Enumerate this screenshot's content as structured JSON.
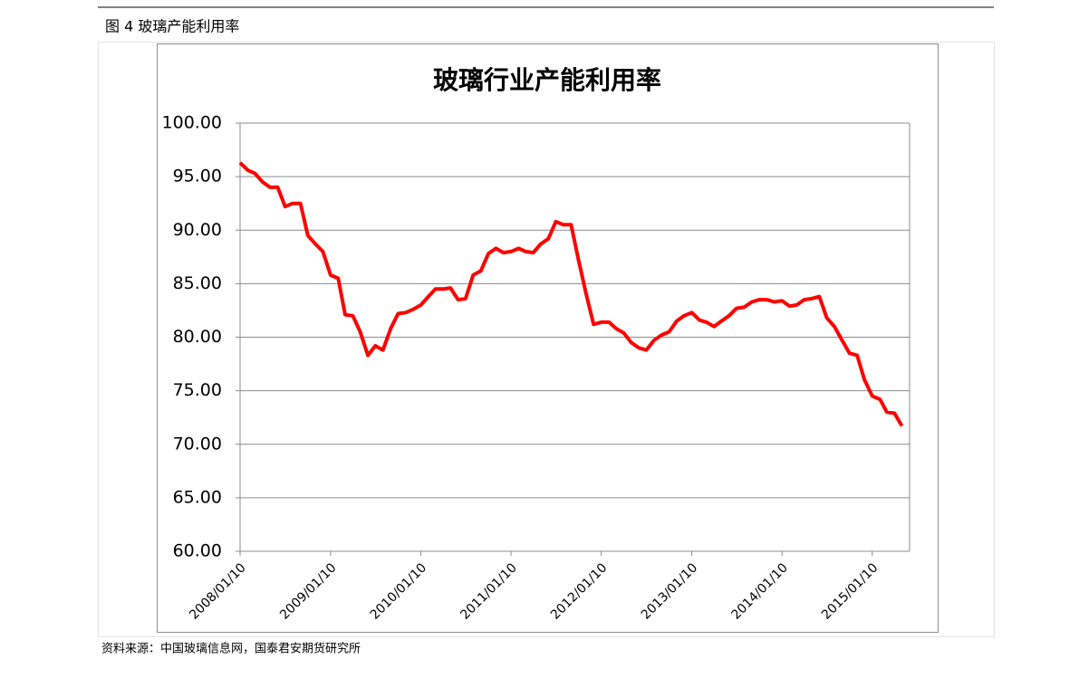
{
  "caption": "图 4  玻璃产能利用率",
  "source": "资料来源：中国玻璃信息网，国泰君安期货研究所",
  "chart_data": {
    "type": "line",
    "title": "玻璃行业产能利用率",
    "x": [
      "2008/01/10",
      "2008/02/10",
      "2008/03/10",
      "2008/04/10",
      "2008/05/10",
      "2008/06/10",
      "2008/07/10",
      "2008/08/10",
      "2008/09/10",
      "2008/10/10",
      "2008/11/10",
      "2008/12/10",
      "2009/01/10",
      "2009/02/10",
      "2009/03/10",
      "2009/04/10",
      "2009/05/10",
      "2009/06/10",
      "2009/07/10",
      "2009/08/10",
      "2009/09/10",
      "2009/10/10",
      "2009/11/10",
      "2009/12/10",
      "2010/01/10",
      "2010/02/10",
      "2010/03/10",
      "2010/04/10",
      "2010/05/10",
      "2010/06/10",
      "2010/07/10",
      "2010/08/10",
      "2010/09/10",
      "2010/10/10",
      "2010/11/10",
      "2010/12/10",
      "2011/01/10",
      "2011/02/10",
      "2011/03/10",
      "2011/04/10",
      "2011/05/10",
      "2011/06/10",
      "2011/07/10",
      "2011/08/10",
      "2011/09/10",
      "2011/10/10",
      "2011/11/10",
      "2011/12/10",
      "2012/01/10",
      "2012/02/10",
      "2012/03/10",
      "2012/04/10",
      "2012/05/10",
      "2012/06/10",
      "2012/07/10",
      "2012/08/10",
      "2012/09/10",
      "2012/10/10",
      "2012/11/10",
      "2012/12/10",
      "2013/01/10",
      "2013/02/10",
      "2013/03/10",
      "2013/04/10",
      "2013/05/10",
      "2013/06/10",
      "2013/07/10",
      "2013/08/10",
      "2013/09/10",
      "2013/10/10",
      "2013/11/10",
      "2013/12/10",
      "2014/01/10",
      "2014/02/10",
      "2014/03/10",
      "2014/04/10",
      "2014/05/10",
      "2014/06/10",
      "2014/07/10",
      "2014/08/10",
      "2014/09/10",
      "2014/10/10",
      "2014/11/10",
      "2014/12/10",
      "2015/01/10",
      "2015/02/10",
      "2015/03/10",
      "2015/04/10",
      "2015/05/10"
    ],
    "series": [
      {
        "color": "#ff0000",
        "values": [
          96.3,
          95.6,
          95.3,
          94.5,
          94.0,
          94.0,
          92.2,
          92.5,
          92.5,
          89.5,
          88.7,
          88.0,
          85.8,
          85.5,
          82.1,
          82.0,
          80.5,
          78.3,
          79.2,
          78.8,
          80.8,
          82.2,
          82.3,
          82.6,
          83.0,
          83.8,
          84.5,
          84.5,
          84.6,
          83.5,
          83.6,
          85.8,
          86.2,
          87.8,
          88.3,
          87.9,
          88.0,
          88.3,
          88.0,
          87.9,
          88.7,
          89.2,
          90.8,
          90.5,
          90.5,
          87.2,
          84.0,
          81.2,
          81.4,
          81.4,
          80.8,
          80.4,
          79.5,
          79.0,
          78.8,
          79.7,
          80.2,
          80.5,
          81.5,
          82.0,
          82.3,
          81.6,
          81.4,
          81.0,
          81.5,
          82.0,
          82.7,
          82.8,
          83.3,
          83.5,
          83.5,
          83.3,
          83.4,
          82.9,
          83.0,
          83.5,
          83.6,
          83.8,
          81.8,
          81.0,
          79.7,
          78.5,
          78.3,
          76.0,
          74.5,
          74.2,
          73.0,
          72.9,
          71.7
        ]
      }
    ],
    "xlim": [
      "2008/01/10",
      "2015/06/10"
    ],
    "xticks": [
      "2008/01/10",
      "2009/01/10",
      "2010/01/10",
      "2011/01/10",
      "2012/01/10",
      "2013/01/10",
      "2014/01/10",
      "2015/01/10"
    ],
    "ylim": [
      60,
      100
    ],
    "yticks": [
      {
        "value": 60,
        "label": "60.00"
      },
      {
        "value": 65,
        "label": "65.00"
      },
      {
        "value": 70,
        "label": "70.00"
      },
      {
        "value": 75,
        "label": "75.00"
      },
      {
        "value": 80,
        "label": "80.00"
      },
      {
        "value": 85,
        "label": "85.00"
      },
      {
        "value": 90,
        "label": "90.00"
      },
      {
        "value": 95,
        "label": "95.00"
      },
      {
        "value": 100,
        "label": "100.00"
      }
    ],
    "grid": true
  }
}
